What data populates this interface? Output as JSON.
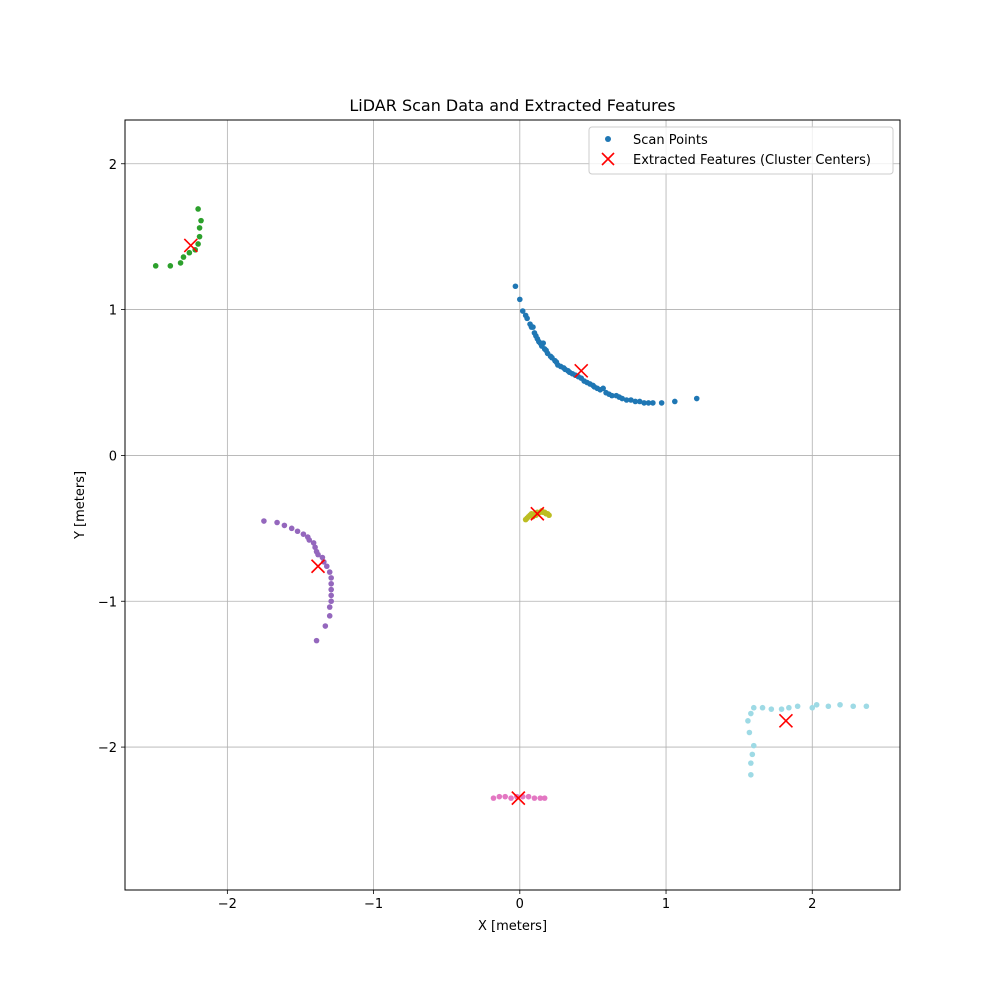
{
  "chart_data": {
    "type": "scatter",
    "title": "LiDAR Scan Data and Extracted Features",
    "xlabel": "X [meters]",
    "ylabel": "Y [meters]",
    "xlim": [
      -2.7,
      2.6
    ],
    "ylim": [
      -2.98,
      2.3
    ],
    "xticks": [
      -2,
      -1,
      0,
      1,
      2
    ],
    "yticks": [
      -2,
      -1,
      0,
      1,
      2
    ],
    "xtick_labels": [
      "−2",
      "−1",
      "0",
      "1",
      "2"
    ],
    "ytick_labels": [
      "−2",
      "−1",
      "0",
      "1",
      "2"
    ],
    "grid": true,
    "legend_position": "top-right",
    "legend": {
      "scan_label": "Scan Points",
      "features_label": "Extracted Features (Cluster Centers)"
    },
    "series": [
      {
        "cluster": 1,
        "color": "#1f77b4",
        "points": [
          [
            -0.03,
            1.16
          ],
          [
            0.0,
            1.07
          ],
          [
            0.02,
            0.99
          ],
          [
            0.04,
            0.96
          ],
          [
            0.05,
            0.94
          ],
          [
            0.07,
            0.9
          ],
          [
            0.08,
            0.88
          ],
          [
            0.09,
            0.88
          ],
          [
            0.1,
            0.84
          ],
          [
            0.11,
            0.82
          ],
          [
            0.12,
            0.8
          ],
          [
            0.13,
            0.78
          ],
          [
            0.14,
            0.77
          ],
          [
            0.15,
            0.75
          ],
          [
            0.16,
            0.77
          ],
          [
            0.17,
            0.73
          ],
          [
            0.18,
            0.72
          ],
          [
            0.19,
            0.7
          ],
          [
            0.21,
            0.68
          ],
          [
            0.22,
            0.67
          ],
          [
            0.24,
            0.65
          ],
          [
            0.25,
            0.64
          ],
          [
            0.26,
            0.62
          ],
          [
            0.28,
            0.61
          ],
          [
            0.3,
            0.6
          ],
          [
            0.31,
            0.59
          ],
          [
            0.33,
            0.58
          ],
          [
            0.34,
            0.57
          ],
          [
            0.36,
            0.56
          ],
          [
            0.38,
            0.55
          ],
          [
            0.4,
            0.54
          ],
          [
            0.42,
            0.53
          ],
          [
            0.44,
            0.51
          ],
          [
            0.46,
            0.5
          ],
          [
            0.48,
            0.49
          ],
          [
            0.5,
            0.48
          ],
          [
            0.51,
            0.47
          ],
          [
            0.53,
            0.46
          ],
          [
            0.55,
            0.45
          ],
          [
            0.57,
            0.46
          ],
          [
            0.59,
            0.43
          ],
          [
            0.61,
            0.42
          ],
          [
            0.63,
            0.41
          ],
          [
            0.66,
            0.41
          ],
          [
            0.68,
            0.4
          ],
          [
            0.7,
            0.39
          ],
          [
            0.73,
            0.38
          ],
          [
            0.76,
            0.38
          ],
          [
            0.79,
            0.37
          ],
          [
            0.82,
            0.37
          ],
          [
            0.85,
            0.36
          ],
          [
            0.88,
            0.36
          ],
          [
            0.91,
            0.36
          ],
          [
            0.97,
            0.36
          ],
          [
            1.06,
            0.37
          ],
          [
            1.21,
            0.39
          ]
        ]
      },
      {
        "cluster": 2,
        "color": "#2ca02c",
        "points": [
          [
            -2.49,
            1.3
          ],
          [
            -2.39,
            1.3
          ],
          [
            -2.32,
            1.32
          ],
          [
            -2.3,
            1.36
          ],
          [
            -2.26,
            1.39
          ],
          [
            -2.22,
            1.41
          ],
          [
            -2.2,
            1.45
          ],
          [
            -2.19,
            1.5
          ],
          [
            -2.19,
            1.56
          ],
          [
            -2.18,
            1.61
          ],
          [
            -2.2,
            1.69
          ]
        ]
      },
      {
        "cluster": 3,
        "color": "#9467bd",
        "points": [
          [
            -1.75,
            -0.45
          ],
          [
            -1.66,
            -0.46
          ],
          [
            -1.61,
            -0.48
          ],
          [
            -1.56,
            -0.5
          ],
          [
            -1.52,
            -0.52
          ],
          [
            -1.48,
            -0.54
          ],
          [
            -1.45,
            -0.56
          ],
          [
            -1.44,
            -0.58
          ],
          [
            -1.41,
            -0.6
          ],
          [
            -1.4,
            -0.63
          ],
          [
            -1.39,
            -0.66
          ],
          [
            -1.38,
            -0.68
          ],
          [
            -1.35,
            -0.7
          ],
          [
            -1.34,
            -0.73
          ],
          [
            -1.32,
            -0.76
          ],
          [
            -1.3,
            -0.8
          ],
          [
            -1.29,
            -0.84
          ],
          [
            -1.29,
            -0.88
          ],
          [
            -1.29,
            -0.92
          ],
          [
            -1.29,
            -0.96
          ],
          [
            -1.29,
            -1.0
          ],
          [
            -1.3,
            -1.04
          ],
          [
            -1.3,
            -1.1
          ],
          [
            -1.33,
            -1.17
          ],
          [
            -1.39,
            -1.27
          ]
        ]
      },
      {
        "cluster": 4,
        "color": "#bcbd22",
        "points": [
          [
            0.04,
            -0.44
          ],
          [
            0.05,
            -0.43
          ],
          [
            0.06,
            -0.42
          ],
          [
            0.07,
            -0.41
          ],
          [
            0.08,
            -0.4
          ],
          [
            0.1,
            -0.4
          ],
          [
            0.12,
            -0.39
          ],
          [
            0.14,
            -0.39
          ],
          [
            0.15,
            -0.38
          ],
          [
            0.16,
            -0.39
          ],
          [
            0.17,
            -0.39
          ],
          [
            0.18,
            -0.4
          ],
          [
            0.19,
            -0.4
          ],
          [
            0.2,
            -0.41
          ],
          [
            0.11,
            -0.41
          ],
          [
            0.09,
            -0.42
          ]
        ]
      },
      {
        "cluster": 5,
        "color": "#e377c2",
        "points": [
          [
            -0.18,
            -2.35
          ],
          [
            -0.14,
            -2.34
          ],
          [
            -0.1,
            -2.34
          ],
          [
            -0.06,
            -2.35
          ],
          [
            -0.02,
            -2.34
          ],
          [
            0.02,
            -2.34
          ],
          [
            0.06,
            -2.34
          ],
          [
            0.1,
            -2.35
          ],
          [
            0.14,
            -2.35
          ],
          [
            0.17,
            -2.35
          ]
        ]
      },
      {
        "cluster": 6,
        "color": "#9edae5",
        "points": [
          [
            1.58,
            -2.19
          ],
          [
            1.58,
            -2.11
          ],
          [
            1.59,
            -2.05
          ],
          [
            1.6,
            -1.99
          ],
          [
            1.57,
            -1.9
          ],
          [
            1.56,
            -1.82
          ],
          [
            1.58,
            -1.77
          ],
          [
            1.6,
            -1.73
          ],
          [
            1.66,
            -1.73
          ],
          [
            1.72,
            -1.74
          ],
          [
            1.79,
            -1.74
          ],
          [
            1.84,
            -1.73
          ],
          [
            1.9,
            -1.72
          ],
          [
            2.0,
            -1.73
          ],
          [
            2.03,
            -1.71
          ],
          [
            2.11,
            -1.72
          ],
          [
            2.19,
            -1.71
          ],
          [
            2.28,
            -1.72
          ],
          [
            2.37,
            -1.72
          ]
        ]
      }
    ],
    "features": {
      "color": "#ff0000",
      "points": [
        [
          0.42,
          0.58
        ],
        [
          -2.25,
          1.44
        ],
        [
          -1.38,
          -0.76
        ],
        [
          0.12,
          -0.4
        ],
        [
          -0.01,
          -2.35
        ],
        [
          1.82,
          -1.82
        ]
      ]
    }
  }
}
